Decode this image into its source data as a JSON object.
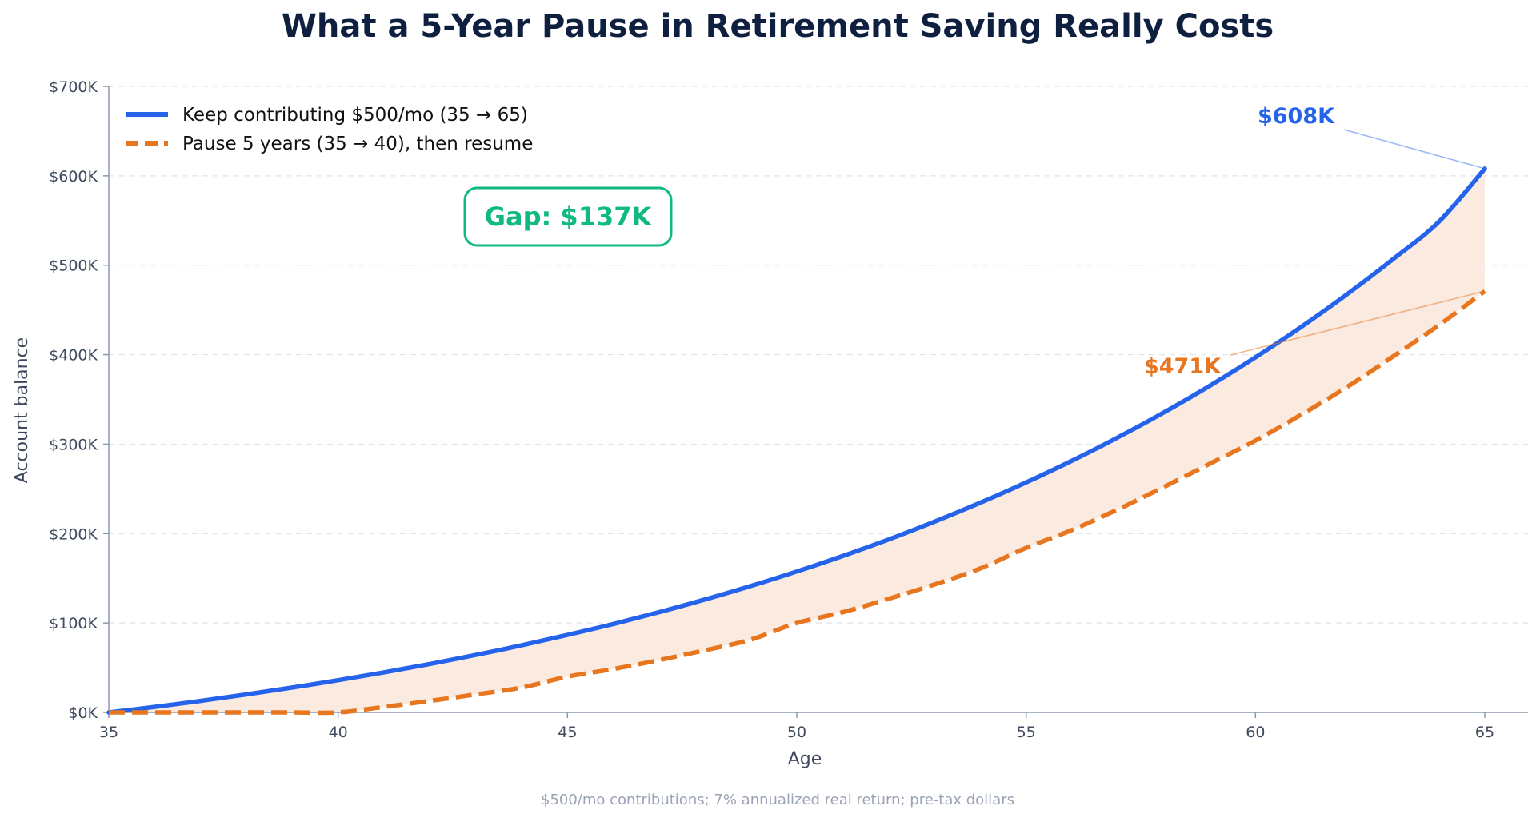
{
  "chart_data": {
    "type": "line",
    "title": "What a 5-Year Pause in Retirement Saving Really Costs",
    "xlabel": "Age",
    "ylabel": "Account balance",
    "xlim": [
      35,
      66
    ],
    "ylim": [
      0,
      700000
    ],
    "x_ticks": [
      35,
      40,
      45,
      50,
      55,
      60,
      65
    ],
    "y_ticks": [
      0,
      100000,
      200000,
      300000,
      400000,
      500000,
      600000,
      700000
    ],
    "y_tick_labels": [
      "$0K",
      "$100K",
      "$200K",
      "$300K",
      "$400K",
      "$500K",
      "$600K",
      "$700K"
    ],
    "grid": "horizontal dashed",
    "legend_position": "top-left",
    "series": [
      {
        "name": "Keep contributing $500/mo (35 → 65)",
        "color": "#2563eb",
        "style": "solid",
        "x": [
          35,
          36,
          37,
          38,
          39,
          40,
          41,
          42,
          43,
          44,
          45,
          46,
          47,
          48,
          49,
          50,
          51,
          52,
          53,
          54,
          55,
          56,
          57,
          58,
          59,
          60,
          61,
          62,
          63,
          64,
          65
        ],
        "y": [
          0,
          6200,
          12900,
          20100,
          27800,
          36000,
          44800,
          54200,
          64300,
          75000,
          86600,
          98900,
          112100,
          126300,
          141400,
          157600,
          174900,
          193400,
          213300,
          234500,
          257200,
          281500,
          307500,
          335300,
          365100,
          397000,
          431100,
          467700,
          506800,
          548700,
          608000
        ]
      },
      {
        "name": "Pause 5 years (35 → 40), then resume",
        "color": "#e8761f",
        "style": "dashed",
        "x": [
          35,
          36,
          37,
          38,
          39,
          40,
          41,
          42,
          43,
          44,
          45,
          46,
          47,
          48,
          49,
          50,
          51,
          52,
          53,
          54,
          55,
          56,
          57,
          58,
          59,
          60,
          61,
          62,
          63,
          64,
          65
        ],
        "y": [
          0,
          0,
          0,
          0,
          0,
          0,
          6200,
          12900,
          20100,
          27800,
          40000,
          48500,
          58500,
          69500,
          81500,
          100000,
          112000,
          127000,
          143000,
          161000,
          184000,
          204000,
          227000,
          252000,
          278000,
          304000,
          333000,
          364000,
          398000,
          433000,
          471000
        ]
      }
    ],
    "annotations": {
      "keep_end_label": "$608K",
      "pause_end_label": "$471K",
      "gap_label": "Gap: $137K",
      "footnote": "$500/mo contributions; 7% annualized real return; pre-tax dollars"
    },
    "colors": {
      "keep": "#2563eb",
      "pause": "#e8761f",
      "gap_fill": "#fbeadf",
      "gap_accent": "#10b981",
      "axis": "#8b98ae"
    }
  }
}
